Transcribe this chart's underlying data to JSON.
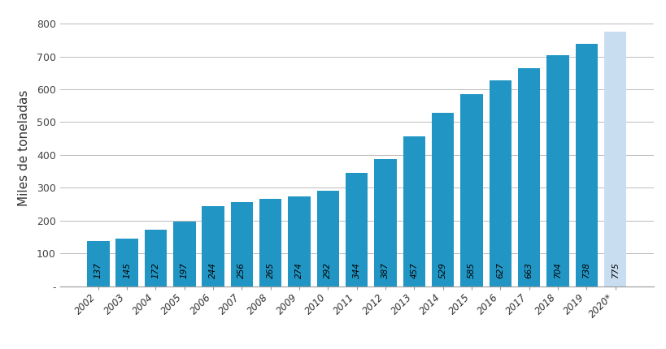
{
  "years": [
    "2002",
    "2003",
    "2004",
    "2005",
    "2006",
    "2007",
    "2008",
    "2009",
    "2010",
    "2011",
    "2012",
    "2013",
    "2014",
    "2015",
    "2016",
    "2017",
    "2018",
    "2019",
    "2020*"
  ],
  "values": [
    137,
    145,
    172,
    197,
    244,
    256,
    265,
    274,
    292,
    344,
    387,
    457,
    529,
    585,
    627,
    663,
    704,
    738,
    775
  ],
  "bar_colors": [
    "#2196C4",
    "#2196C4",
    "#2196C4",
    "#2196C4",
    "#2196C4",
    "#2196C4",
    "#2196C4",
    "#2196C4",
    "#2196C4",
    "#2196C4",
    "#2196C4",
    "#2196C4",
    "#2196C4",
    "#2196C4",
    "#2196C4",
    "#2196C4",
    "#2196C4",
    "#2196C4",
    "#C8DDF0"
  ],
  "ylabel": "Miles de toneladas",
  "ylim": [
    0,
    840
  ],
  "yticks": [
    0,
    100,
    200,
    300,
    400,
    500,
    600,
    700,
    800
  ],
  "background_color": "#ffffff",
  "grid_color": "#bbbbbb",
  "label_fontsize": 7.5,
  "ylabel_fontsize": 11
}
